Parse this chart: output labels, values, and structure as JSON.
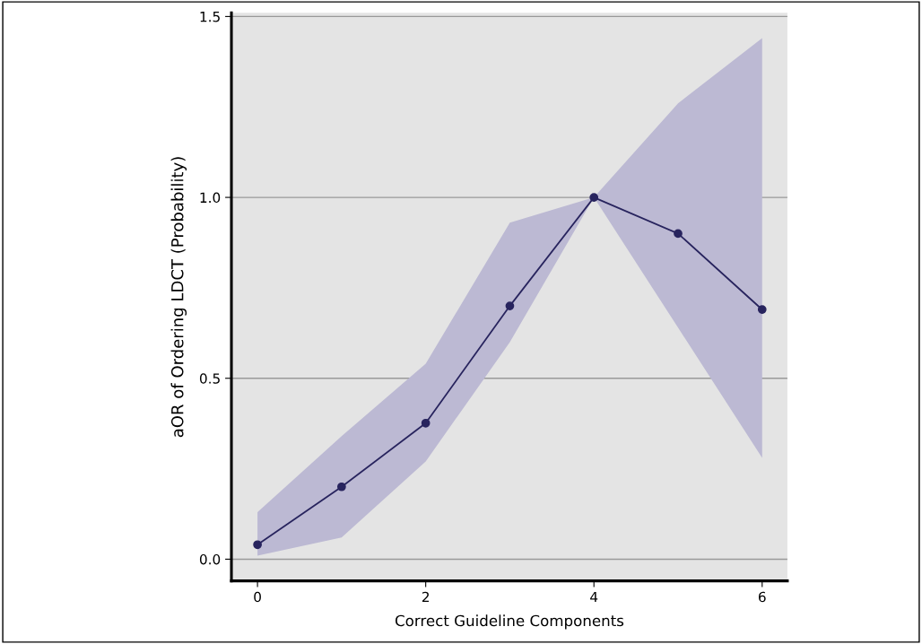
{
  "chart_data": {
    "type": "line",
    "xlabel": "Correct Guideline Components",
    "ylabel": "aOR of Ordering LDCT (Probability)",
    "x": [
      0,
      1,
      2,
      3,
      4,
      5,
      6
    ],
    "series": [
      {
        "color": "#28245e",
        "values": [
          0.04,
          0.2,
          0.376,
          0.7,
          1.0,
          0.9,
          0.69
        ],
        "lower": [
          0.01,
          0.06,
          0.27,
          0.6,
          1.0,
          0.64,
          0.28
        ],
        "upper": [
          0.13,
          0.34,
          0.54,
          0.93,
          1.0,
          1.26,
          1.44
        ]
      }
    ],
    "xlim": [
      -0.31,
      6.3
    ],
    "ylim": [
      -0.06,
      1.51
    ],
    "xticks": [
      0,
      2,
      4,
      6
    ],
    "yticks": [
      {
        "value": 0,
        "label": "0.0"
      },
      {
        "value": 0.5,
        "label": "0.5"
      },
      {
        "value": 1.0,
        "label": "1.0"
      },
      {
        "value": 1.5,
        "label": "1.5"
      }
    ],
    "grid": "y",
    "marker": "circle",
    "line_style": "solid"
  }
}
